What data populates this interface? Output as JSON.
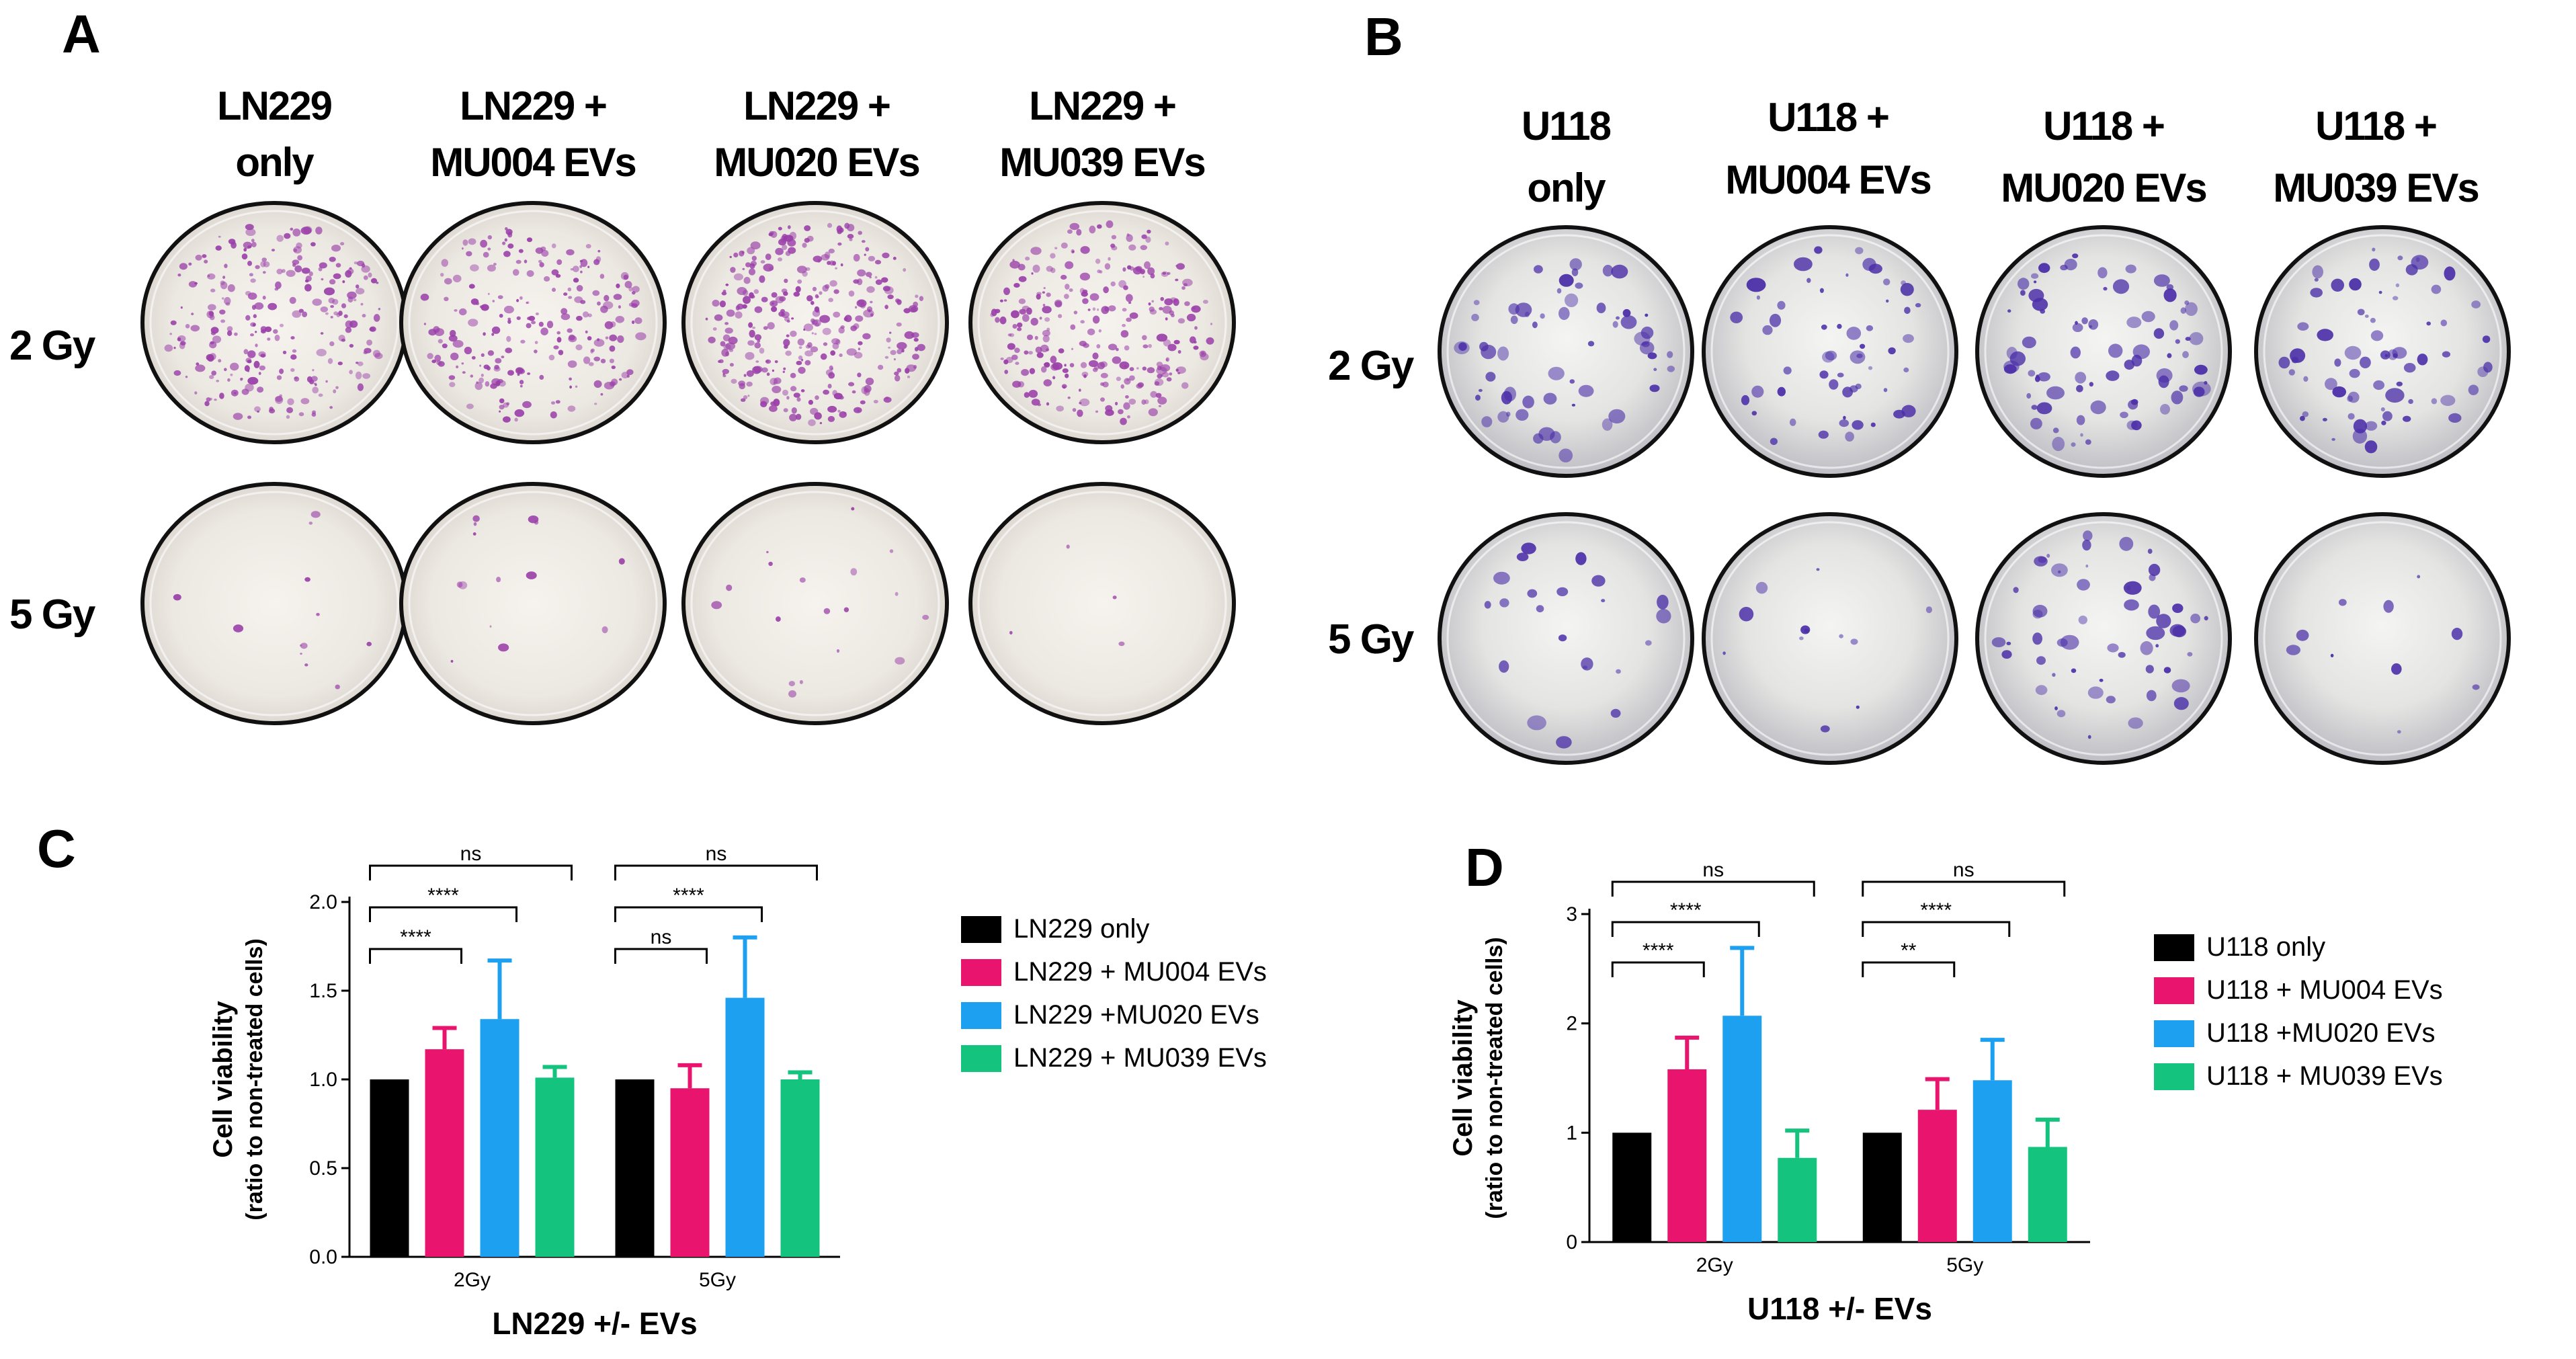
{
  "panels": {
    "A": {
      "label": "A",
      "columns": [
        [
          "LN229",
          "only"
        ],
        [
          "LN229 +",
          "MU004 EVs"
        ],
        [
          "LN229 +",
          "MU020 EVs"
        ],
        [
          "LN229 +",
          "MU039 EVs"
        ]
      ],
      "rows": [
        "2 Gy",
        "5 Gy"
      ],
      "stain_color": "#9a3fa8"
    },
    "B": {
      "label": "B",
      "columns": [
        [
          "U118",
          "only"
        ],
        [
          "U118 +",
          "MU004 EVs"
        ],
        [
          "U118 +",
          "MU020 EVs"
        ],
        [
          "U118 +",
          "MU039 EVs"
        ]
      ],
      "rows": [
        "2 Gy",
        "5 Gy"
      ],
      "stain_color": "#4b2fa8"
    },
    "C": {
      "label": "C"
    },
    "D": {
      "label": "D"
    }
  },
  "chart_data": [
    {
      "type": "bar",
      "panel": "C",
      "categories": [
        "2Gy",
        "5Gy"
      ],
      "series": [
        {
          "name": "LN229 only",
          "values": [
            1.0,
            1.0
          ],
          "errors": [
            0,
            0
          ],
          "color": "#000000"
        },
        {
          "name": "LN229 + MU004 EVs",
          "values": [
            1.17,
            0.95
          ],
          "errors": [
            0.12,
            0.13
          ],
          "color": "#e8146e"
        },
        {
          "name": "LN229 +MU020  EVs",
          "values": [
            1.34,
            1.46
          ],
          "errors": [
            0.33,
            0.34
          ],
          "color": "#1ea0f0"
        },
        {
          "name": "LN229 + MU039 EVs",
          "values": [
            1.01,
            1.0
          ],
          "errors": [
            0.06,
            0.04
          ],
          "color": "#14c37d"
        }
      ],
      "ylim": [
        0,
        2.0
      ],
      "yticks": [
        "0.0",
        "0.5",
        "1.0",
        "1.5",
        "2.0"
      ],
      "ylabel": [
        "Cell viability",
        "(ratio to non-treated cells)"
      ],
      "xlabel": "LN229 +/- EVs",
      "legend": "right",
      "significance": [
        {
          "group": 0,
          "from": 0,
          "to": 1,
          "label": "****"
        },
        {
          "group": 0,
          "from": 0,
          "to": 2,
          "label": "****"
        },
        {
          "group": 0,
          "from": 0,
          "to": 3,
          "label": "ns"
        },
        {
          "group": 1,
          "from": 0,
          "to": 1,
          "label": "ns"
        },
        {
          "group": 1,
          "from": 0,
          "to": 2,
          "label": "****"
        },
        {
          "group": 1,
          "from": 0,
          "to": 3,
          "label": "ns"
        }
      ]
    },
    {
      "type": "bar",
      "panel": "D",
      "categories": [
        "2Gy",
        "5Gy"
      ],
      "series": [
        {
          "name": "U118 only",
          "values": [
            1.0,
            1.0
          ],
          "errors": [
            0,
            0
          ],
          "color": "#000000"
        },
        {
          "name": "U118 + MU004 EVs",
          "values": [
            1.58,
            1.21
          ],
          "errors": [
            0.29,
            0.28
          ],
          "color": "#e8146e"
        },
        {
          "name": "U118  +MU020  EVs",
          "values": [
            2.07,
            1.48
          ],
          "errors": [
            0.62,
            0.37
          ],
          "color": "#1ea0f0"
        },
        {
          "name": "U118 + MU039 EVs",
          "values": [
            0.77,
            0.87
          ],
          "errors": [
            0.25,
            0.25
          ],
          "color": "#14c37d"
        }
      ],
      "ylim": [
        0,
        3
      ],
      "yticks": [
        "0",
        "1",
        "2",
        "3"
      ],
      "ylabel": [
        "Cell viability",
        "(ratio to non-treated cells)"
      ],
      "xlabel": "U118 +/- EVs",
      "legend": "right",
      "significance": [
        {
          "group": 0,
          "from": 0,
          "to": 1,
          "label": "****"
        },
        {
          "group": 0,
          "from": 0,
          "to": 2,
          "label": "****"
        },
        {
          "group": 0,
          "from": 0,
          "to": 3,
          "label": "ns"
        },
        {
          "group": 1,
          "from": 0,
          "to": 1,
          "label": "**"
        },
        {
          "group": 1,
          "from": 0,
          "to": 2,
          "label": "****"
        },
        {
          "group": 1,
          "from": 0,
          "to": 3,
          "label": "ns"
        }
      ]
    }
  ]
}
